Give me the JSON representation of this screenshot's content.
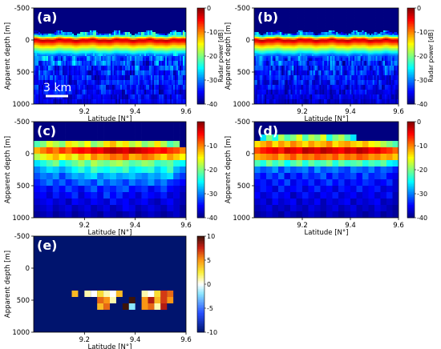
{
  "chart_data": [
    {
      "type": "heatmap",
      "panel_label": "(a)",
      "render": "radargram",
      "xlabel": "Latitude [N°]",
      "ylabel": "Apparent depth [m]",
      "xlim": [
        9.0,
        9.6
      ],
      "ylim": [
        -500,
        1000
      ],
      "x_ticks": [
        "9.2",
        "9.4",
        "9.6"
      ],
      "y_ticks": [
        "-500",
        "0",
        "500",
        "1000"
      ],
      "scale_bar": "3 km",
      "colorbar": {
        "label": "Radar power [dB]",
        "range": [
          -40,
          0
        ],
        "ticks": [
          "0",
          "-10",
          "-20",
          "-30",
          "-40"
        ]
      },
      "values_summary": {
        "surface_depth_m": 0,
        "surface_power_db": -2,
        "subsurface_power_db_range": [
          -40,
          -20
        ]
      }
    },
    {
      "type": "heatmap",
      "panel_label": "(b)",
      "render": "radargram",
      "xlabel": "Latitude [N°]",
      "ylabel": "Apparent depth [m]",
      "xlim": [
        9.0,
        9.6
      ],
      "ylim": [
        -500,
        1000
      ],
      "x_ticks": [
        "9.2",
        "9.4",
        "9.6"
      ],
      "y_ticks": [
        "-500",
        "0",
        "500",
        "1000"
      ],
      "colorbar": {
        "label": "Radar power [dB]",
        "range": [
          -40,
          0
        ],
        "ticks": [
          "0",
          "-10",
          "-20",
          "-30",
          "-40"
        ]
      },
      "values_summary": {
        "surface_depth_m": 0,
        "surface_power_db": -2,
        "subsurface_power_db_range": [
          -40,
          -22
        ]
      }
    },
    {
      "type": "heatmap",
      "panel_label": "(c)",
      "render": "grid",
      "xlabel": "Latitude [N°]",
      "ylabel": "Apparent depth [m]",
      "xlim": [
        9.0,
        9.6
      ],
      "ylim": [
        -500,
        1000
      ],
      "x_ticks": [
        "9.2",
        "9.4",
        "9.6"
      ],
      "y_ticks": [
        "-500",
        "0",
        "500",
        "1000"
      ],
      "colorbar": {
        "label": "",
        "range": [
          -40,
          0
        ],
        "ticks": [
          "-10",
          "-20",
          "-30",
          "-40"
        ]
      },
      "row_depths_m": [
        -400,
        -300,
        -200,
        -100,
        0,
        100,
        200,
        300,
        400,
        500,
        600,
        700,
        800,
        900,
        1000
      ],
      "column_latitudes": [
        9.0,
        9.025,
        9.05,
        9.075,
        9.1,
        9.125,
        9.15,
        9.175,
        9.2,
        9.225,
        9.25,
        9.275,
        9.3,
        9.325,
        9.35,
        9.375,
        9.4,
        9.425,
        9.45,
        9.475,
        9.5,
        9.525,
        9.55,
        9.575
      ],
      "rows_db": [
        [
          -40,
          -40,
          -40,
          -40,
          -40,
          -40,
          -40,
          -40,
          -40,
          -40,
          -40,
          -40,
          -40,
          -40,
          -40,
          -40,
          -40,
          -40,
          -40,
          -40,
          -40,
          -40,
          -40,
          -40
        ],
        [
          -40,
          -40,
          -40,
          -40,
          -40,
          -40,
          -40,
          -40,
          -40,
          -40,
          -40,
          -40,
          -40,
          -40,
          -40,
          -40,
          -40,
          -40,
          -40,
          -40,
          -40,
          -40,
          -40,
          -40
        ],
        [
          -40,
          -40,
          -40,
          -40,
          -40,
          -40,
          -40,
          -40,
          -40,
          -40,
          -40,
          -40,
          -40,
          -40,
          -40,
          -40,
          -40,
          -40,
          -40,
          -40,
          -40,
          -40,
          -40,
          -40
        ],
        [
          -22,
          -20,
          -16,
          -18,
          -20,
          -14,
          -16,
          -18,
          -15,
          -20,
          -18,
          -14,
          -12,
          -16,
          -14,
          -18,
          -16,
          -20,
          -18,
          -14,
          -18,
          -22,
          -20,
          -40
        ],
        [
          -12,
          -10,
          -8,
          -10,
          -7,
          -9,
          -6,
          -5,
          -6,
          -4,
          -5,
          -3,
          -2,
          -3,
          -4,
          -2,
          -3,
          -4,
          -5,
          -6,
          -5,
          -7,
          -8,
          -10
        ],
        [
          -18,
          -16,
          -14,
          -12,
          -15,
          -13,
          -16,
          -12,
          -14,
          -10,
          -12,
          -11,
          -9,
          -10,
          -8,
          -12,
          -11,
          -9,
          -10,
          -12,
          -14,
          -11,
          -13,
          -15
        ],
        [
          -26,
          -24,
          -22,
          -20,
          -25,
          -23,
          -21,
          -19,
          -22,
          -18,
          -20,
          -21,
          -19,
          -18,
          -20,
          -22,
          -21,
          -19,
          -20,
          -23,
          -22,
          -21,
          -24,
          -25
        ],
        [
          -30,
          -28,
          -26,
          -27,
          -29,
          -27,
          -25,
          -23,
          -26,
          -22,
          -24,
          -25,
          -23,
          -24,
          -22,
          -26,
          -25,
          -24,
          -23,
          -27,
          -25,
          -22,
          -28,
          -30
        ],
        [
          -32,
          -30,
          -31,
          -29,
          -33,
          -30,
          -28,
          -29,
          -27,
          -26,
          -30,
          -28,
          -27,
          -29,
          -28,
          -27,
          -29,
          -30,
          -28,
          -29,
          -27,
          -26,
          -31,
          -33
        ],
        [
          -34,
          -32,
          -30,
          -33,
          -31,
          -34,
          -32,
          -30,
          -31,
          -33,
          -29,
          -32,
          -30,
          -31,
          -33,
          -30,
          -32,
          -31,
          -29,
          -32,
          -30,
          -33,
          -34,
          -35
        ],
        [
          -35,
          -34,
          -36,
          -33,
          -35,
          -32,
          -34,
          -36,
          -33,
          -31,
          -35,
          -33,
          -34,
          -32,
          -31,
          -35,
          -34,
          -33,
          -36,
          -34,
          -32,
          -35,
          -36,
          -37
        ],
        [
          -36,
          -35,
          -37,
          -34,
          -36,
          -35,
          -33,
          -37,
          -35,
          -34,
          -36,
          -32,
          -35,
          -33,
          -36,
          -35,
          -37,
          -34,
          -35,
          -36,
          -34,
          -37,
          -36,
          -38
        ],
        [
          -37,
          -36,
          -35,
          -37,
          -36,
          -38,
          -35,
          -36,
          -37,
          -35,
          -36,
          -37,
          -34,
          -36,
          -35,
          -37,
          -36,
          -35,
          -37,
          -38,
          -36,
          -35,
          -37,
          -38
        ],
        [
          -38,
          -37,
          -36,
          -38,
          -37,
          -36,
          -38,
          -37,
          -36,
          -38,
          -37,
          -36,
          -38,
          -37,
          -35,
          -36,
          -38,
          -37,
          -36,
          -37,
          -38,
          -36,
          -37,
          -39
        ],
        [
          -39,
          -38,
          -37,
          -39,
          -38,
          -37,
          -39,
          -38,
          -37,
          -38,
          -39,
          -37,
          -38,
          -39,
          -38,
          -37,
          -39,
          -38,
          -37,
          -38,
          -39,
          -38,
          -37,
          -39
        ]
      ]
    },
    {
      "type": "heatmap",
      "panel_label": "(d)",
      "render": "grid",
      "xlabel": "Latitude [N°]",
      "ylabel": "Apparent depth [m]",
      "xlim": [
        9.0,
        9.6
      ],
      "ylim": [
        -500,
        1000
      ],
      "x_ticks": [
        "9.2",
        "9.4",
        "9.6"
      ],
      "y_ticks": [
        "-500",
        "0",
        "500",
        "1000"
      ],
      "colorbar": {
        "label": "",
        "range": [
          -40,
          0
        ],
        "ticks": [
          "0",
          "-10",
          "-20",
          "-30",
          "-40"
        ]
      },
      "row_depths_m": [
        -400,
        -300,
        -200,
        -100,
        0,
        100,
        200,
        300,
        400,
        500,
        600,
        700,
        800,
        900,
        1000
      ],
      "column_latitudes": [
        9.0,
        9.025,
        9.05,
        9.075,
        9.1,
        9.125,
        9.15,
        9.175,
        9.2,
        9.225,
        9.25,
        9.275,
        9.3,
        9.325,
        9.35,
        9.375,
        9.4,
        9.425,
        9.45,
        9.475,
        9.5,
        9.525,
        9.55,
        9.575
      ],
      "rows_db": [
        [
          -40,
          -40,
          -40,
          -40,
          -40,
          -40,
          -40,
          -40,
          -40,
          -40,
          -40,
          -40,
          -40,
          -40,
          -40,
          -40,
          -40,
          -40,
          -40,
          -40,
          -40,
          -40,
          -40,
          -40
        ],
        [
          -40,
          -40,
          -40,
          -40,
          -40,
          -40,
          -40,
          -40,
          -40,
          -40,
          -40,
          -40,
          -40,
          -40,
          -40,
          -40,
          -40,
          -40,
          -40,
          -40,
          -40,
          -40,
          -40,
          -40
        ],
        [
          -40,
          -26,
          -20,
          -24,
          -18,
          -22,
          -20,
          -16,
          -22,
          -18,
          -20,
          -16,
          -24,
          -20,
          -18,
          -22,
          -26,
          -40,
          -40,
          -40,
          -40,
          -40,
          -40,
          -40
        ],
        [
          -14,
          -12,
          -10,
          -14,
          -11,
          -13,
          -10,
          -12,
          -14,
          -11,
          -13,
          -12,
          -10,
          -14,
          -12,
          -11,
          -13,
          -14,
          -12,
          -15,
          -16,
          -18,
          -20,
          -22
        ],
        [
          -8,
          -6,
          -5,
          -4,
          -6,
          -3,
          -4,
          -5,
          -2,
          -3,
          -4,
          -2,
          -3,
          -4,
          -5,
          -3,
          -4,
          -2,
          -3,
          -5,
          -4,
          -6,
          -7,
          -9
        ],
        [
          -12,
          -11,
          -10,
          -9,
          -12,
          -10,
          -8,
          -11,
          -9,
          -10,
          -8,
          -9,
          -10,
          -8,
          -11,
          -9,
          -10,
          -8,
          -9,
          -11,
          -10,
          -12,
          -11,
          -13
        ],
        [
          -22,
          -24,
          -20,
          -23,
          -21,
          -25,
          -22,
          -20,
          -24,
          -21,
          -23,
          -22,
          -20,
          -24,
          -21,
          -23,
          -22,
          -21,
          -24,
          -22,
          -23,
          -21,
          -25,
          -26
        ],
        [
          -30,
          -32,
          -31,
          -29,
          -33,
          -30,
          -32,
          -31,
          -30,
          -33,
          -29,
          -32,
          -31,
          -30,
          -32,
          -33,
          -30,
          -31,
          -32,
          -30,
          -33,
          -31,
          -32,
          -34
        ],
        [
          -33,
          -35,
          -32,
          -34,
          -31,
          -36,
          -33,
          -35,
          -32,
          -34,
          -33,
          -31,
          -35,
          -32,
          -34,
          -33,
          -32,
          -35,
          -31,
          -34,
          -33,
          -32,
          -35,
          -36
        ],
        [
          -35,
          -34,
          -36,
          -33,
          -35,
          -32,
          -36,
          -34,
          -35,
          -33,
          -36,
          -34,
          -32,
          -35,
          -33,
          -36,
          -34,
          -35,
          -33,
          -34,
          -36,
          -35,
          -33,
          -37
        ],
        [
          -36,
          -34,
          -35,
          -37,
          -33,
          -36,
          -35,
          -34,
          -37,
          -35,
          -33,
          -36,
          -35,
          -37,
          -34,
          -35,
          -36,
          -33,
          -36,
          -35,
          -34,
          -37,
          -36,
          -37
        ],
        [
          -35,
          -37,
          -36,
          -34,
          -36,
          -35,
          -38,
          -36,
          -34,
          -36,
          -37,
          -35,
          -36,
          -34,
          -37,
          -36,
          -35,
          -37,
          -36,
          -35,
          -37,
          -36,
          -34,
          -38
        ],
        [
          -37,
          -36,
          -38,
          -35,
          -37,
          -36,
          -35,
          -38,
          -36,
          -37,
          -35,
          -38,
          -36,
          -37,
          -36,
          -35,
          -38,
          -36,
          -37,
          -36,
          -35,
          -38,
          -37,
          -38
        ],
        [
          -38,
          -37,
          -36,
          -38,
          -37,
          -38,
          -36,
          -37,
          -38,
          -36,
          -37,
          -38,
          -37,
          -36,
          -38,
          -37,
          -36,
          -38,
          -37,
          -38,
          -36,
          -37,
          -38,
          -39
        ],
        [
          -39,
          -38,
          -37,
          -38,
          -39,
          -37,
          -38,
          -39,
          -38,
          -37,
          -38,
          -39,
          -37,
          -38,
          -39,
          -38,
          -37,
          -38,
          -39,
          -38,
          -37,
          -39,
          -38,
          -39
        ]
      ]
    },
    {
      "type": "heatmap",
      "panel_label": "(e)",
      "render": "sparse",
      "xlabel": "Latitude [N°]",
      "ylabel": "Apparent depth [m]",
      "xlim": [
        9.0,
        9.6
      ],
      "ylim": [
        -500,
        1000
      ],
      "x_ticks": [
        "9.2",
        "9.4",
        "9.6"
      ],
      "y_ticks": [
        "-500",
        "0",
        "500",
        "1000"
      ],
      "colorbar": {
        "label": "",
        "range": [
          -10,
          10
        ],
        "ticks": [
          "10",
          "5",
          "0",
          "-5",
          "-10"
        ]
      },
      "background_value": -10,
      "cells": [
        {
          "lat": 9.15,
          "depth": 400,
          "value": 4
        },
        {
          "lat": 9.2,
          "depth": 400,
          "value": 1
        },
        {
          "lat": 9.225,
          "depth": 400,
          "value": 0
        },
        {
          "lat": 9.25,
          "depth": 400,
          "value": 3
        },
        {
          "lat": 9.275,
          "depth": 400,
          "value": 1
        },
        {
          "lat": 9.3,
          "depth": 400,
          "value": 0
        },
        {
          "lat": 9.325,
          "depth": 400,
          "value": 4
        },
        {
          "lat": 9.425,
          "depth": 400,
          "value": 1
        },
        {
          "lat": 9.45,
          "depth": 400,
          "value": 0
        },
        {
          "lat": 9.475,
          "depth": 400,
          "value": 3
        },
        {
          "lat": 9.5,
          "depth": 400,
          "value": 7
        },
        {
          "lat": 9.525,
          "depth": 400,
          "value": 6
        },
        {
          "lat": 9.25,
          "depth": 500,
          "value": 6
        },
        {
          "lat": 9.275,
          "depth": 500,
          "value": 5
        },
        {
          "lat": 9.3,
          "depth": 500,
          "value": 1
        },
        {
          "lat": 9.375,
          "depth": 500,
          "value": 10
        },
        {
          "lat": 9.425,
          "depth": 500,
          "value": 5
        },
        {
          "lat": 9.45,
          "depth": 500,
          "value": 8
        },
        {
          "lat": 9.475,
          "depth": 500,
          "value": 4
        },
        {
          "lat": 9.5,
          "depth": 500,
          "value": 7
        },
        {
          "lat": 9.525,
          "depth": 500,
          "value": 5
        },
        {
          "lat": 9.25,
          "depth": 600,
          "value": 4
        },
        {
          "lat": 9.275,
          "depth": 600,
          "value": 6
        },
        {
          "lat": 9.35,
          "depth": 600,
          "value": 10
        },
        {
          "lat": 9.375,
          "depth": 600,
          "value": -2
        },
        {
          "lat": 9.425,
          "depth": 600,
          "value": 5
        },
        {
          "lat": 9.45,
          "depth": 600,
          "value": 6
        },
        {
          "lat": 9.475,
          "depth": 600,
          "value": 1
        },
        {
          "lat": 9.5,
          "depth": 600,
          "value": 8
        }
      ]
    }
  ]
}
